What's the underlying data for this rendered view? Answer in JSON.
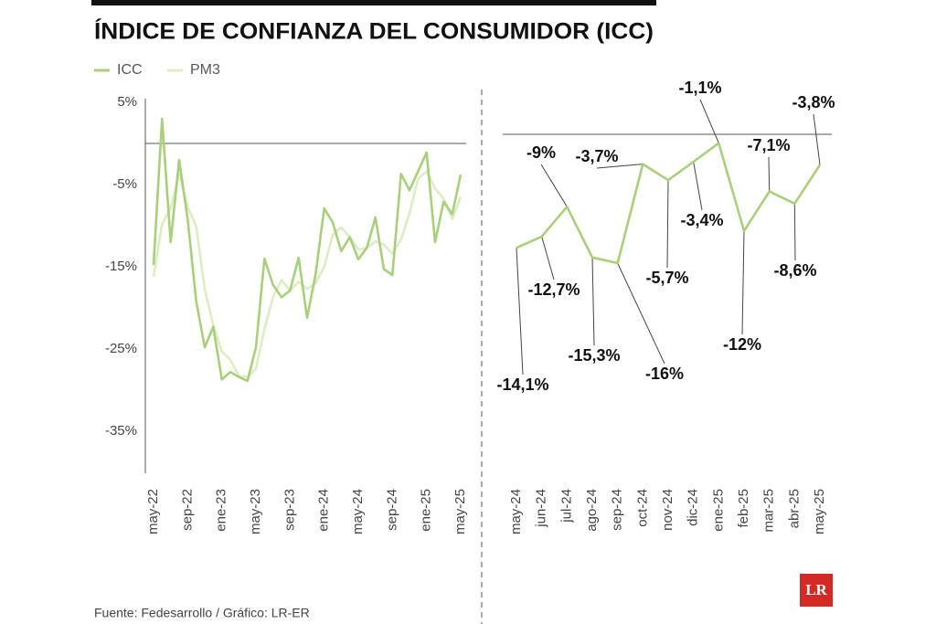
{
  "title": "ÍNDICE DE CONFIANZA DEL CONSUMIDOR (ICC)",
  "source": "Fuente: Fedesarrollo / Gráfico: LR-ER",
  "logo": "LR",
  "chart_data": [
    {
      "type": "line",
      "categories": [
        "may-22",
        null,
        null,
        null,
        "sep-22",
        null,
        null,
        null,
        "ene-23",
        null,
        null,
        null,
        "may-23",
        null,
        null,
        null,
        "sep-23",
        null,
        null,
        null,
        "ene-24",
        null,
        null,
        null,
        "may-24",
        null,
        null,
        null,
        "sep-24",
        null,
        null,
        null,
        "ene-25",
        null,
        null,
        null,
        "may-25"
      ],
      "series": [
        {
          "name": "ICC",
          "color": "#a8d07a",
          "values": [
            -14.8,
            3.0,
            -12,
            -2,
            -9.2,
            -19.2,
            -24.8,
            -22.3,
            -28.7,
            -27.8,
            -28.4,
            -28.9,
            -24.8,
            -14,
            -17.2,
            -18.7,
            -17.9,
            -13.9,
            -21.2,
            -15.9,
            -7.9,
            -9.6,
            -13.1,
            -11.4,
            -14.1,
            -12.7,
            -9,
            -15.3,
            -16,
            -3.7,
            -5.7,
            -3.4,
            -1.1,
            -12,
            -7.1,
            -8.6,
            -3.8
          ]
        },
        {
          "name": "PM3",
          "color": "#dcedc4",
          "values": [
            -16.2,
            -9.8,
            -7.9,
            -3.7,
            -7.7,
            -10.1,
            -17.7,
            -22.1,
            -25.3,
            -26.3,
            -28.3,
            -28.4,
            -27.4,
            -22.6,
            -18.7,
            -16.6,
            -17.9,
            -16.8,
            -17.7,
            -17.0,
            -15.0,
            -11.1,
            -10.2,
            -11.4,
            -12.9,
            -12.7,
            -11.9,
            -12.3,
            -13.4,
            -11.7,
            -8.5,
            -4.3,
            -3.4,
            -5.5,
            -6.7,
            -9.2,
            -6.5
          ]
        }
      ],
      "ylim": [
        -40,
        5.5
      ],
      "yticks": [
        {
          "value": 5,
          "label": "5%"
        },
        {
          "value": -5,
          "label": "-5%"
        },
        {
          "value": -15,
          "label": "-15%"
        },
        {
          "value": -25,
          "label": "-25%"
        },
        {
          "value": -35,
          "label": "-35%"
        }
      ]
    },
    {
      "type": "line",
      "categories": [
        "may-24",
        "jun-24",
        "jul-24",
        "ago-24",
        "sep-24",
        "oct-24",
        "nov-24",
        "dic-24",
        "ene-25",
        "feb-25",
        "mar-25",
        "abr-25",
        "may-25"
      ],
      "values": [
        -14.1,
        -12.7,
        -9,
        -15.3,
        -16,
        -3.7,
        -5.7,
        -3.4,
        -1.1,
        -12,
        -7.1,
        -8.6,
        -3.8
      ],
      "value_labels": [
        "-14,1%",
        "-12,7%",
        "-9%",
        "-15,3%",
        "-16%",
        "-3,7%",
        "-5,7%",
        "-3,4%",
        "-1,1%",
        "-12%",
        "-7,1%",
        "-8,6%",
        "-3,8%"
      ],
      "color": "#a8d07a"
    }
  ]
}
